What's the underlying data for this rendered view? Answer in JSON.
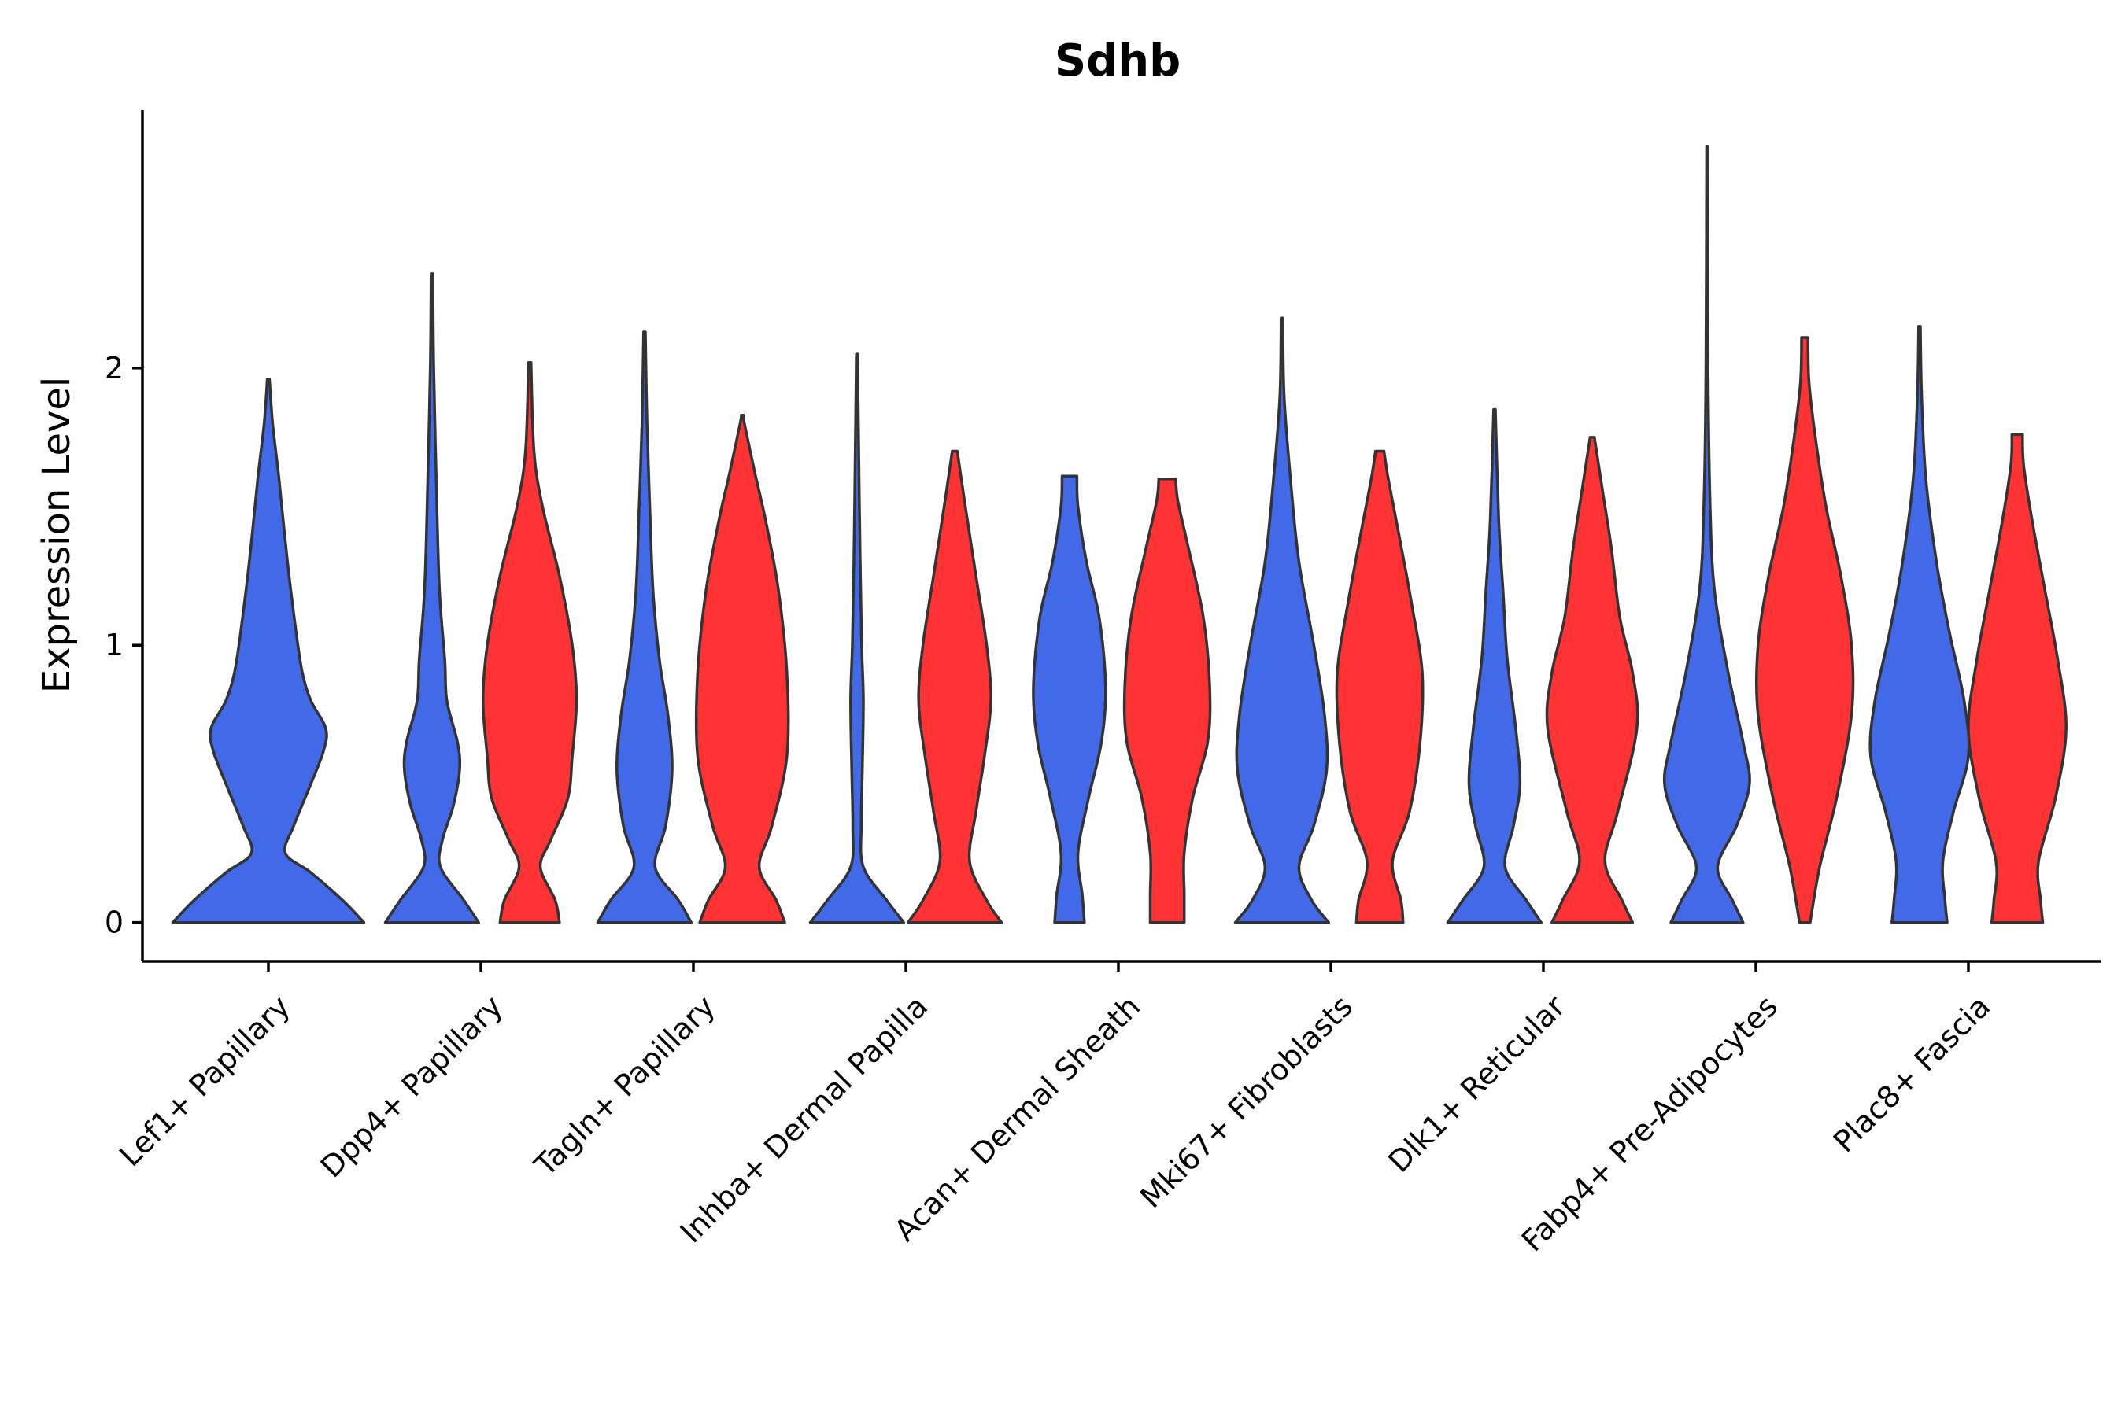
{
  "chart_data": {
    "type": "violin",
    "title": "Sdhb",
    "xlabel": "",
    "ylabel": "Expression Level",
    "ylim": [
      -0.14,
      2.93
    ],
    "yticks": [
      0,
      1,
      2
    ],
    "grid": false,
    "legend": "none",
    "colors": {
      "blue": "#4169E8",
      "red": "#FF3333"
    },
    "categories": [
      "Lef1+ Papillary",
      "Dpp4+ Papillary",
      "Tagln+ Papillary",
      "Inhba+ Dermal Papilla",
      "Acan+ Dermal Sheath",
      "Mki67+ Fibroblasts",
      "Dlk1+ Reticular",
      "Fabp4+ Pre-Adipocytes",
      "Plac8+ Fascia"
    ],
    "violins": [
      {
        "category": 0,
        "offset": 0.0,
        "color": "blue",
        "max": 1.96,
        "profile": [
          [
            0,
            0.45
          ],
          [
            0.08,
            0.35
          ],
          [
            0.18,
            0.2
          ],
          [
            0.25,
            0.08
          ],
          [
            0.35,
            0.12
          ],
          [
            0.5,
            0.2
          ],
          [
            0.62,
            0.26
          ],
          [
            0.7,
            0.27
          ],
          [
            0.8,
            0.2
          ],
          [
            0.9,
            0.16
          ],
          [
            1.05,
            0.13
          ],
          [
            1.3,
            0.09
          ],
          [
            1.6,
            0.05
          ],
          [
            1.8,
            0.02
          ],
          [
            1.96,
            0.005
          ]
        ]
      },
      {
        "category": 1,
        "offset": -0.23,
        "color": "blue",
        "max": 2.34,
        "profile": [
          [
            0,
            0.22
          ],
          [
            0.08,
            0.15
          ],
          [
            0.2,
            0.04
          ],
          [
            0.3,
            0.05
          ],
          [
            0.42,
            0.1
          ],
          [
            0.55,
            0.13
          ],
          [
            0.65,
            0.12
          ],
          [
            0.8,
            0.07
          ],
          [
            0.95,
            0.06
          ],
          [
            1.2,
            0.035
          ],
          [
            1.6,
            0.02
          ],
          [
            2.0,
            0.008
          ],
          [
            2.34,
            0.004
          ]
        ]
      },
      {
        "category": 1,
        "offset": 0.23,
        "color": "red",
        "max": 2.02,
        "profile": [
          [
            0,
            0.14
          ],
          [
            0.08,
            0.12
          ],
          [
            0.2,
            0.05
          ],
          [
            0.3,
            0.1
          ],
          [
            0.45,
            0.18
          ],
          [
            0.6,
            0.2
          ],
          [
            0.8,
            0.22
          ],
          [
            1.0,
            0.2
          ],
          [
            1.25,
            0.14
          ],
          [
            1.5,
            0.06
          ],
          [
            1.7,
            0.02
          ],
          [
            2.02,
            0.006
          ]
        ]
      },
      {
        "category": 2,
        "offset": -0.23,
        "color": "blue",
        "max": 2.13,
        "profile": [
          [
            0,
            0.22
          ],
          [
            0.08,
            0.16
          ],
          [
            0.2,
            0.05
          ],
          [
            0.35,
            0.1
          ],
          [
            0.55,
            0.13
          ],
          [
            0.75,
            0.11
          ],
          [
            0.95,
            0.07
          ],
          [
            1.2,
            0.04
          ],
          [
            1.5,
            0.025
          ],
          [
            1.8,
            0.012
          ],
          [
            2.13,
            0.004
          ]
        ]
      },
      {
        "category": 2,
        "offset": 0.23,
        "color": "red",
        "max": 1.83,
        "profile": [
          [
            0,
            0.2
          ],
          [
            0.08,
            0.16
          ],
          [
            0.2,
            0.08
          ],
          [
            0.35,
            0.14
          ],
          [
            0.6,
            0.21
          ],
          [
            0.9,
            0.21
          ],
          [
            1.2,
            0.17
          ],
          [
            1.45,
            0.11
          ],
          [
            1.62,
            0.06
          ],
          [
            1.8,
            0.01
          ],
          [
            1.83,
            0.005
          ]
        ]
      },
      {
        "category": 3,
        "offset": -0.23,
        "color": "blue",
        "max": 2.05,
        "profile": [
          [
            0,
            0.22
          ],
          [
            0.08,
            0.14
          ],
          [
            0.2,
            0.03
          ],
          [
            0.35,
            0.02
          ],
          [
            0.55,
            0.025
          ],
          [
            0.8,
            0.03
          ],
          [
            1.0,
            0.022
          ],
          [
            1.3,
            0.015
          ],
          [
            1.7,
            0.008
          ],
          [
            2.05,
            0.003
          ]
        ]
      },
      {
        "category": 3,
        "offset": 0.23,
        "color": "red",
        "max": 1.71,
        "profile": [
          [
            0,
            0.22
          ],
          [
            0.08,
            0.15
          ],
          [
            0.22,
            0.07
          ],
          [
            0.4,
            0.1
          ],
          [
            0.6,
            0.14
          ],
          [
            0.8,
            0.17
          ],
          [
            1.0,
            0.15
          ],
          [
            1.25,
            0.1
          ],
          [
            1.5,
            0.05
          ],
          [
            1.7,
            0.012
          ]
        ]
      },
      {
        "category": 4,
        "offset": -0.23,
        "color": "blue",
        "max": 1.61,
        "profile": [
          [
            0,
            0.07
          ],
          [
            0.1,
            0.06
          ],
          [
            0.25,
            0.04
          ],
          [
            0.45,
            0.09
          ],
          [
            0.65,
            0.15
          ],
          [
            0.85,
            0.17
          ],
          [
            1.1,
            0.14
          ],
          [
            1.3,
            0.08
          ],
          [
            1.5,
            0.04
          ],
          [
            1.61,
            0.035
          ]
        ]
      },
      {
        "category": 4,
        "offset": 0.23,
        "color": "red",
        "max": 1.6,
        "profile": [
          [
            0,
            0.08
          ],
          [
            0.1,
            0.08
          ],
          [
            0.25,
            0.08
          ],
          [
            0.45,
            0.12
          ],
          [
            0.65,
            0.19
          ],
          [
            0.85,
            0.2
          ],
          [
            1.1,
            0.17
          ],
          [
            1.35,
            0.1
          ],
          [
            1.52,
            0.05
          ],
          [
            1.6,
            0.04
          ]
        ]
      },
      {
        "category": 5,
        "offset": -0.23,
        "color": "blue",
        "max": 2.18,
        "profile": [
          [
            0,
            0.22
          ],
          [
            0.08,
            0.14
          ],
          [
            0.2,
            0.08
          ],
          [
            0.35,
            0.15
          ],
          [
            0.55,
            0.21
          ],
          [
            0.75,
            0.2
          ],
          [
            1.0,
            0.15
          ],
          [
            1.3,
            0.08
          ],
          [
            1.6,
            0.04
          ],
          [
            1.9,
            0.01
          ],
          [
            2.18,
            0.004
          ]
        ]
      },
      {
        "category": 5,
        "offset": 0.23,
        "color": "red",
        "max": 1.7,
        "profile": [
          [
            0,
            0.11
          ],
          [
            0.08,
            0.1
          ],
          [
            0.22,
            0.06
          ],
          [
            0.4,
            0.14
          ],
          [
            0.65,
            0.19
          ],
          [
            0.9,
            0.2
          ],
          [
            1.15,
            0.15
          ],
          [
            1.4,
            0.09
          ],
          [
            1.6,
            0.04
          ],
          [
            1.7,
            0.02
          ]
        ]
      },
      {
        "category": 6,
        "offset": -0.23,
        "color": "blue",
        "max": 1.85,
        "profile": [
          [
            0,
            0.22
          ],
          [
            0.08,
            0.15
          ],
          [
            0.2,
            0.05
          ],
          [
            0.35,
            0.09
          ],
          [
            0.5,
            0.12
          ],
          [
            0.7,
            0.1
          ],
          [
            0.95,
            0.06
          ],
          [
            1.2,
            0.04
          ],
          [
            1.45,
            0.02
          ],
          [
            1.85,
            0.004
          ]
        ]
      },
      {
        "category": 6,
        "offset": 0.23,
        "color": "red",
        "max": 1.75,
        "profile": [
          [
            0,
            0.19
          ],
          [
            0.08,
            0.14
          ],
          [
            0.22,
            0.06
          ],
          [
            0.4,
            0.12
          ],
          [
            0.7,
            0.21
          ],
          [
            0.9,
            0.19
          ],
          [
            1.1,
            0.13
          ],
          [
            1.35,
            0.09
          ],
          [
            1.55,
            0.05
          ],
          [
            1.75,
            0.01
          ]
        ]
      },
      {
        "category": 7,
        "offset": -0.23,
        "color": "blue",
        "max": 2.8,
        "profile": [
          [
            0,
            0.17
          ],
          [
            0.08,
            0.12
          ],
          [
            0.2,
            0.05
          ],
          [
            0.35,
            0.14
          ],
          [
            0.5,
            0.2
          ],
          [
            0.65,
            0.17
          ],
          [
            0.9,
            0.1
          ],
          [
            1.2,
            0.035
          ],
          [
            1.5,
            0.015
          ],
          [
            2.0,
            0.005
          ],
          [
            2.8,
            0.002
          ]
        ]
      },
      {
        "category": 7,
        "offset": 0.23,
        "color": "red",
        "max": 2.11,
        "profile": [
          [
            0,
            0.025
          ],
          [
            0.2,
            0.07
          ],
          [
            0.45,
            0.15
          ],
          [
            0.75,
            0.22
          ],
          [
            1.0,
            0.22
          ],
          [
            1.25,
            0.17
          ],
          [
            1.5,
            0.1
          ],
          [
            1.75,
            0.05
          ],
          [
            1.95,
            0.02
          ],
          [
            2.11,
            0.015
          ]
        ]
      },
      {
        "category": 8,
        "offset": -0.23,
        "color": "blue",
        "max": 2.15,
        "profile": [
          [
            0,
            0.13
          ],
          [
            0.08,
            0.12
          ],
          [
            0.22,
            0.11
          ],
          [
            0.4,
            0.16
          ],
          [
            0.6,
            0.23
          ],
          [
            0.8,
            0.21
          ],
          [
            1.05,
            0.14
          ],
          [
            1.3,
            0.08
          ],
          [
            1.6,
            0.03
          ],
          [
            1.9,
            0.01
          ],
          [
            2.15,
            0.004
          ]
        ]
      },
      {
        "category": 8,
        "offset": 0.23,
        "color": "red",
        "max": 1.76,
        "profile": [
          [
            0,
            0.12
          ],
          [
            0.08,
            0.11
          ],
          [
            0.22,
            0.1
          ],
          [
            0.45,
            0.18
          ],
          [
            0.7,
            0.23
          ],
          [
            0.95,
            0.19
          ],
          [
            1.2,
            0.13
          ],
          [
            1.45,
            0.07
          ],
          [
            1.65,
            0.03
          ],
          [
            1.76,
            0.025
          ]
        ]
      }
    ]
  }
}
